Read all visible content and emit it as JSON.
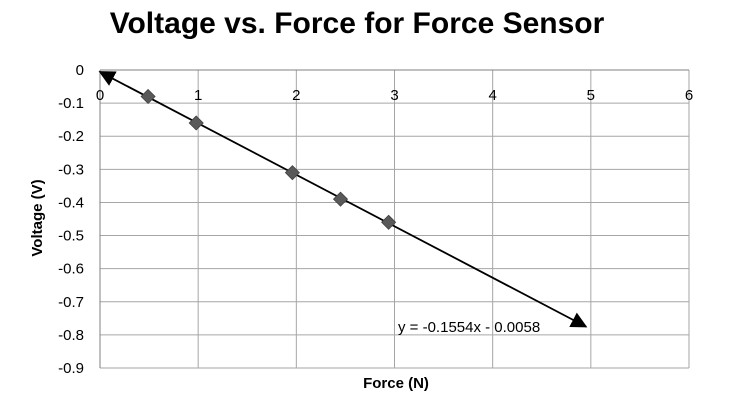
{
  "chart_data": {
    "type": "scatter",
    "title": "Voltage vs. Force for Force Sensor",
    "xlabel": "Force (N)",
    "ylabel": "Voltage (V)",
    "xlim": [
      0,
      6
    ],
    "ylim": [
      -0.9,
      0
    ],
    "x_ticks": [
      "0",
      "1",
      "2",
      "3",
      "4",
      "5",
      "6"
    ],
    "y_ticks": [
      "0",
      "-0.1",
      "-0.2",
      "-0.3",
      "-0.4",
      "-0.5",
      "-0.6",
      "-0.7",
      "-0.8",
      "-0.9"
    ],
    "grid": true,
    "series": [
      {
        "x": [
          0.49,
          0.98,
          1.96,
          2.45,
          2.94
        ],
        "y": [
          -0.08,
          -0.16,
          -0.31,
          -0.39,
          -0.46
        ],
        "color": "#595959",
        "marker": "diamond"
      }
    ],
    "trendline": {
      "slope": -0.1554,
      "intercept": -0.0058,
      "x_range": [
        0,
        4.95
      ],
      "equation_label": "y = -0.1554x - 0.0058",
      "color": "#000000"
    }
  }
}
